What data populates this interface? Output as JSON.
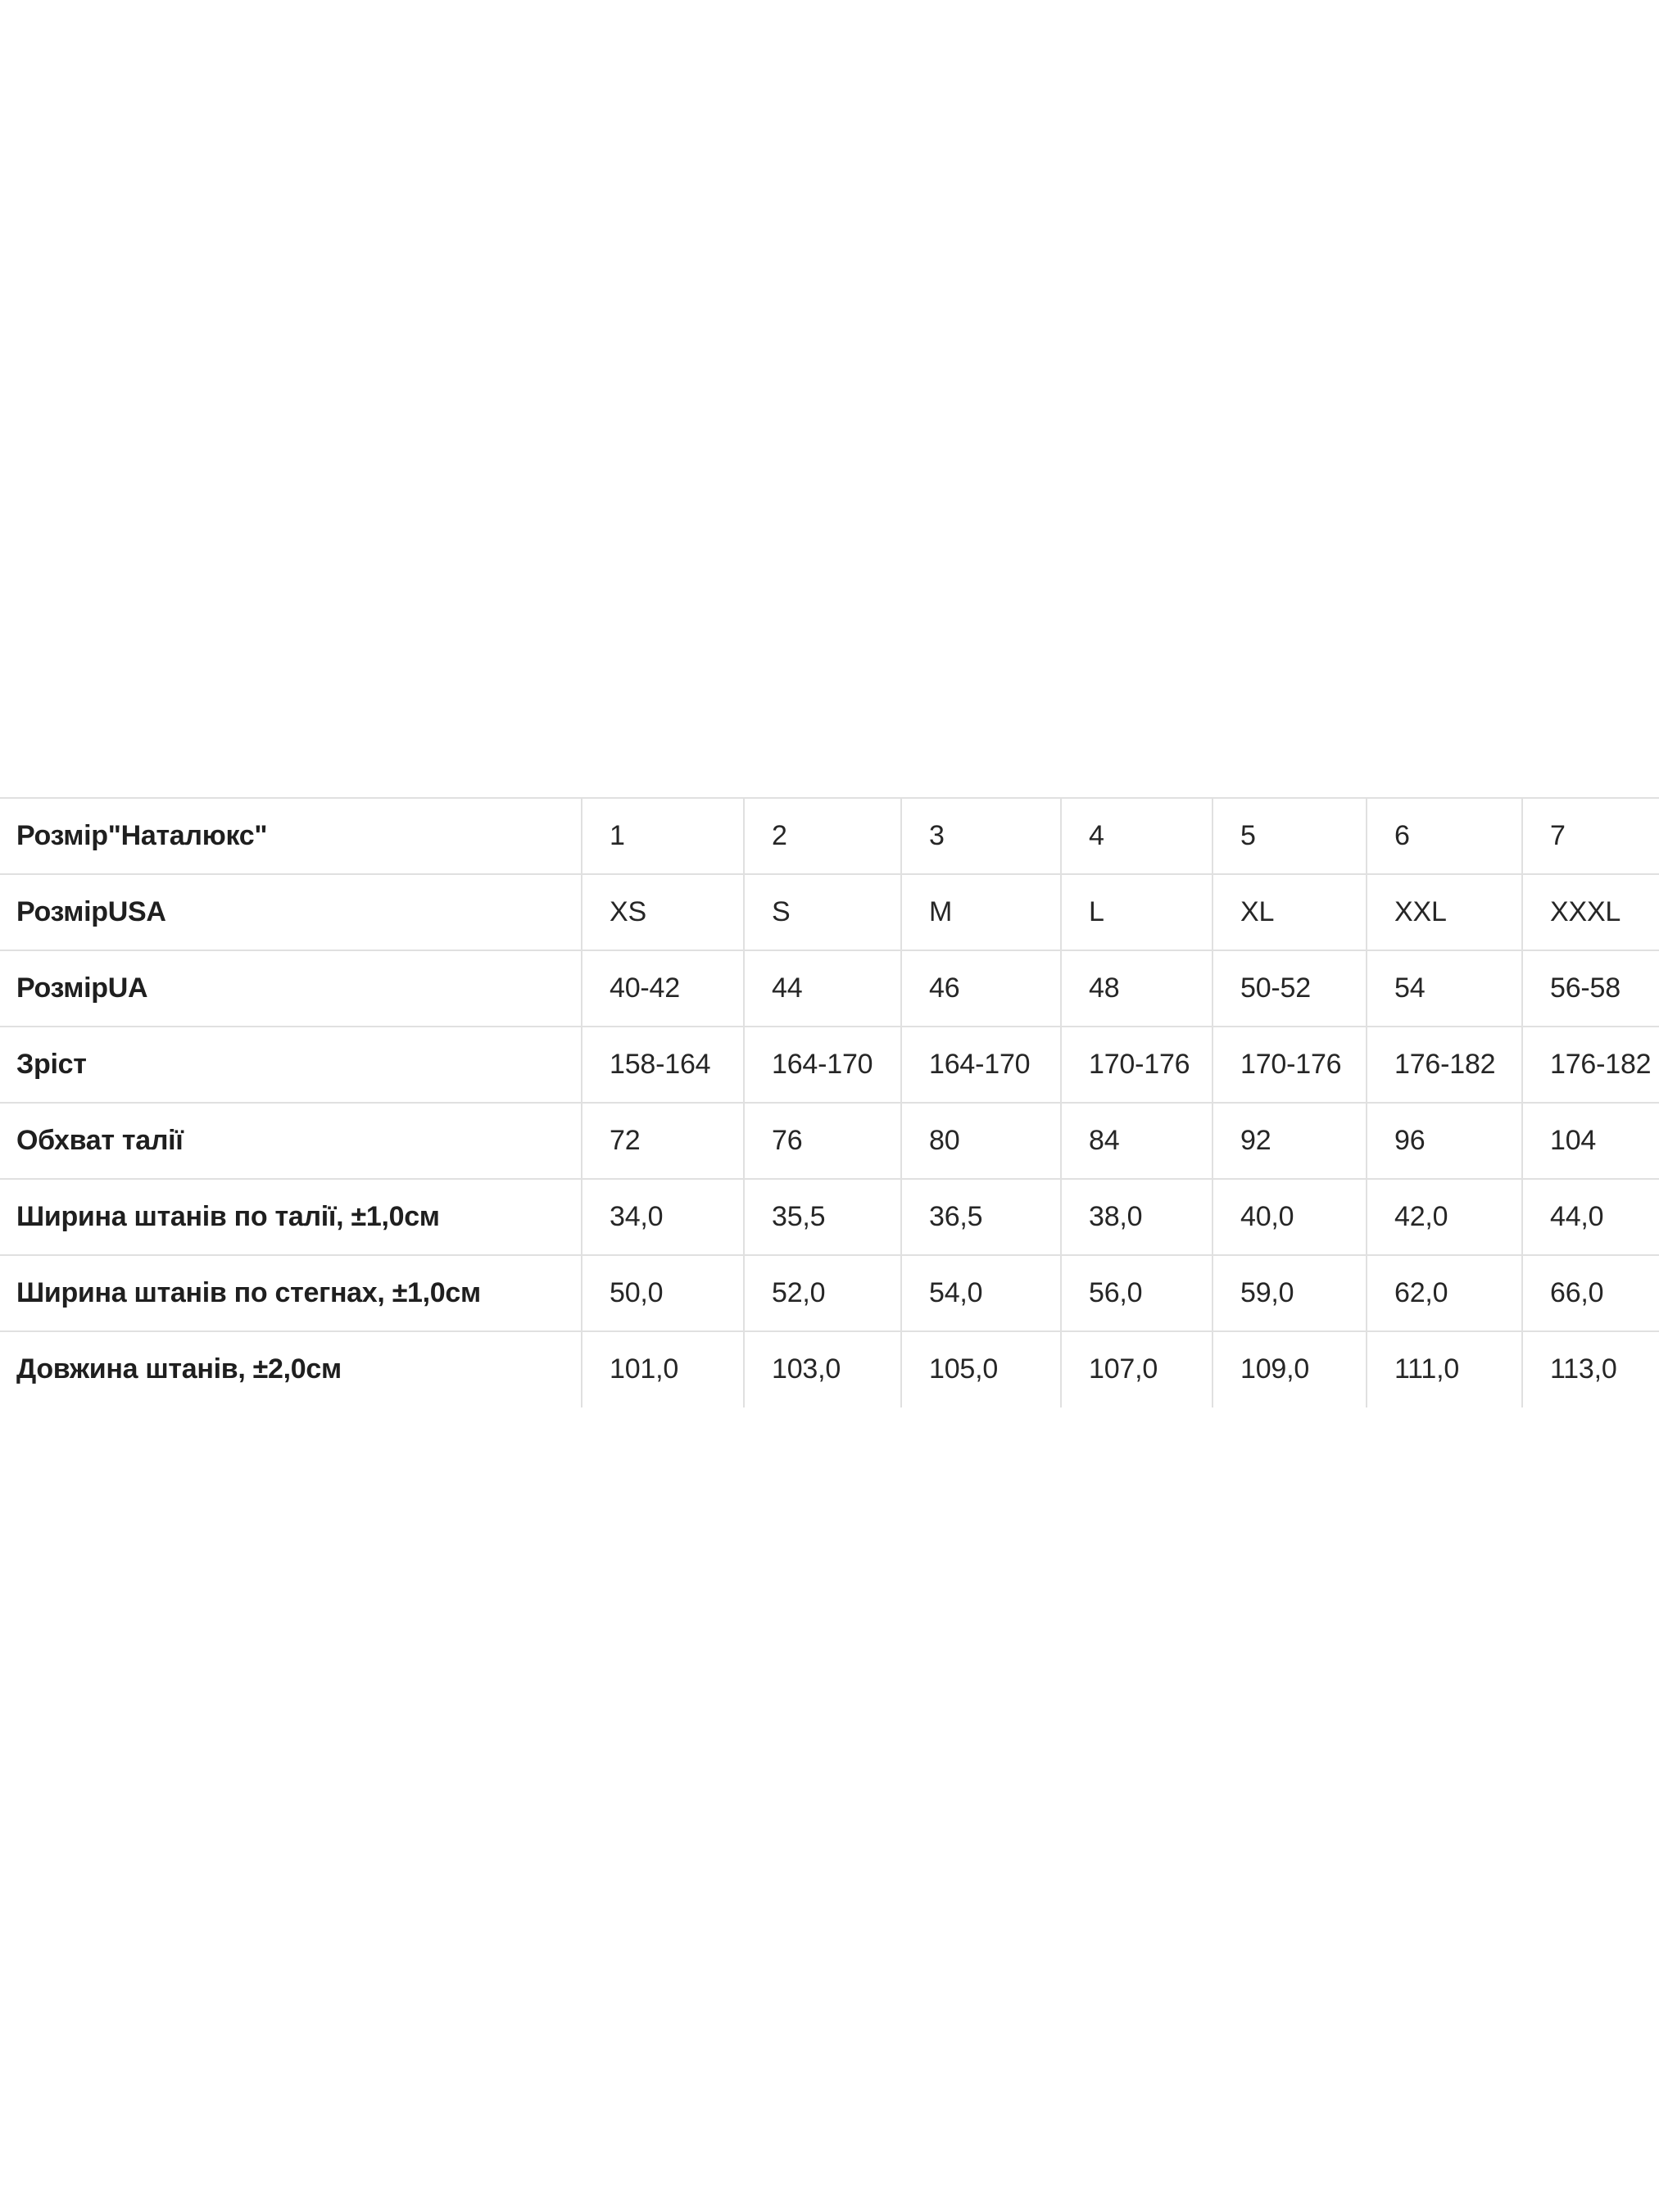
{
  "page": {
    "background_color": "#ffffff",
    "text_color": "#1f1f1f",
    "border_color": "#e0e0e0"
  },
  "chart_data": {
    "type": "table",
    "title": "",
    "columns": [
      "1",
      "2",
      "3",
      "4",
      "5",
      "6",
      "7"
    ],
    "rows": [
      {
        "label": "Розмір\"Наталюкс\"",
        "values": [
          "1",
          "2",
          "3",
          "4",
          "5",
          "6",
          "7"
        ]
      },
      {
        "label": "РозмірUSA",
        "values": [
          "XS",
          "S",
          "M",
          "L",
          "XL",
          "XXL",
          "XXXL"
        ]
      },
      {
        "label": "РозмірUA",
        "values": [
          "40-42",
          "44",
          "46",
          "48",
          "50-52",
          "54",
          "56-58"
        ]
      },
      {
        "label": "Зріст",
        "values": [
          "158-164",
          "164-170",
          "164-170",
          "170-176",
          "170-176",
          "176-182",
          "176-182"
        ]
      },
      {
        "label": "Обхват талії",
        "values": [
          "72",
          "76",
          "80",
          "84",
          "92",
          "96",
          "104"
        ]
      },
      {
        "label": "Ширина штанів по талії, ±1,0см",
        "values": [
          "34,0",
          "35,5",
          "36,5",
          "38,0",
          "40,0",
          "42,0",
          "44,0"
        ]
      },
      {
        "label": "Ширина штанів по стегнах, ±1,0см",
        "values": [
          "50,0",
          "52,0",
          "54,0",
          "56,0",
          "59,0",
          "62,0",
          "66,0"
        ]
      },
      {
        "label": "Довжина штанів, ±2,0см",
        "values": [
          "101,0",
          "103,0",
          "105,0",
          "107,0",
          "109,0",
          "111,0",
          "113,0"
        ]
      }
    ],
    "layout_hints": {
      "grid": "horizontal row separators and vertical column dividers only",
      "outer_borders": "top only; no left, right, or bottom outer border",
      "decimal_separator": "comma"
    }
  }
}
